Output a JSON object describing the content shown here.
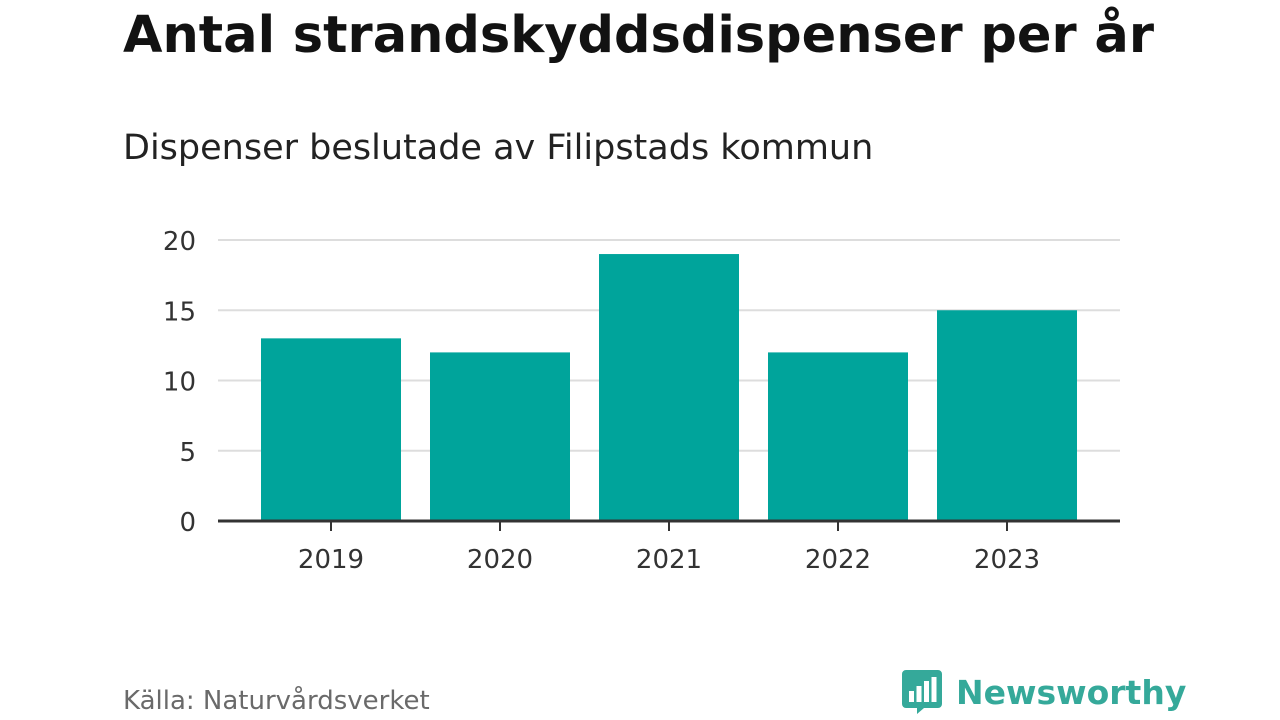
{
  "title": "Antal strandskyddsdispenser per år",
  "subtitle": "Dispenser beslutade av Filipstads kommun",
  "source": "Källa: Naturvårdsverket",
  "brand": {
    "name": "Newsworthy",
    "color": "#35a99a",
    "icon": "newsworthy-bar-chart-icon"
  },
  "colors": {
    "bar": "#00a49b",
    "grid": "#dddddd",
    "axis": "#333333"
  },
  "chart_data": {
    "type": "bar",
    "title": "Antal strandskyddsdispenser per år",
    "subtitle": "Dispenser beslutade av Filipstads kommun",
    "categories": [
      "2019",
      "2020",
      "2021",
      "2022",
      "2023"
    ],
    "values": [
      13,
      12,
      19,
      12,
      15
    ],
    "xlabel": "",
    "ylabel": "",
    "ylim": [
      0,
      20
    ],
    "yticks": [
      0,
      5,
      10,
      15,
      20
    ],
    "grid": true,
    "legend": "none"
  }
}
